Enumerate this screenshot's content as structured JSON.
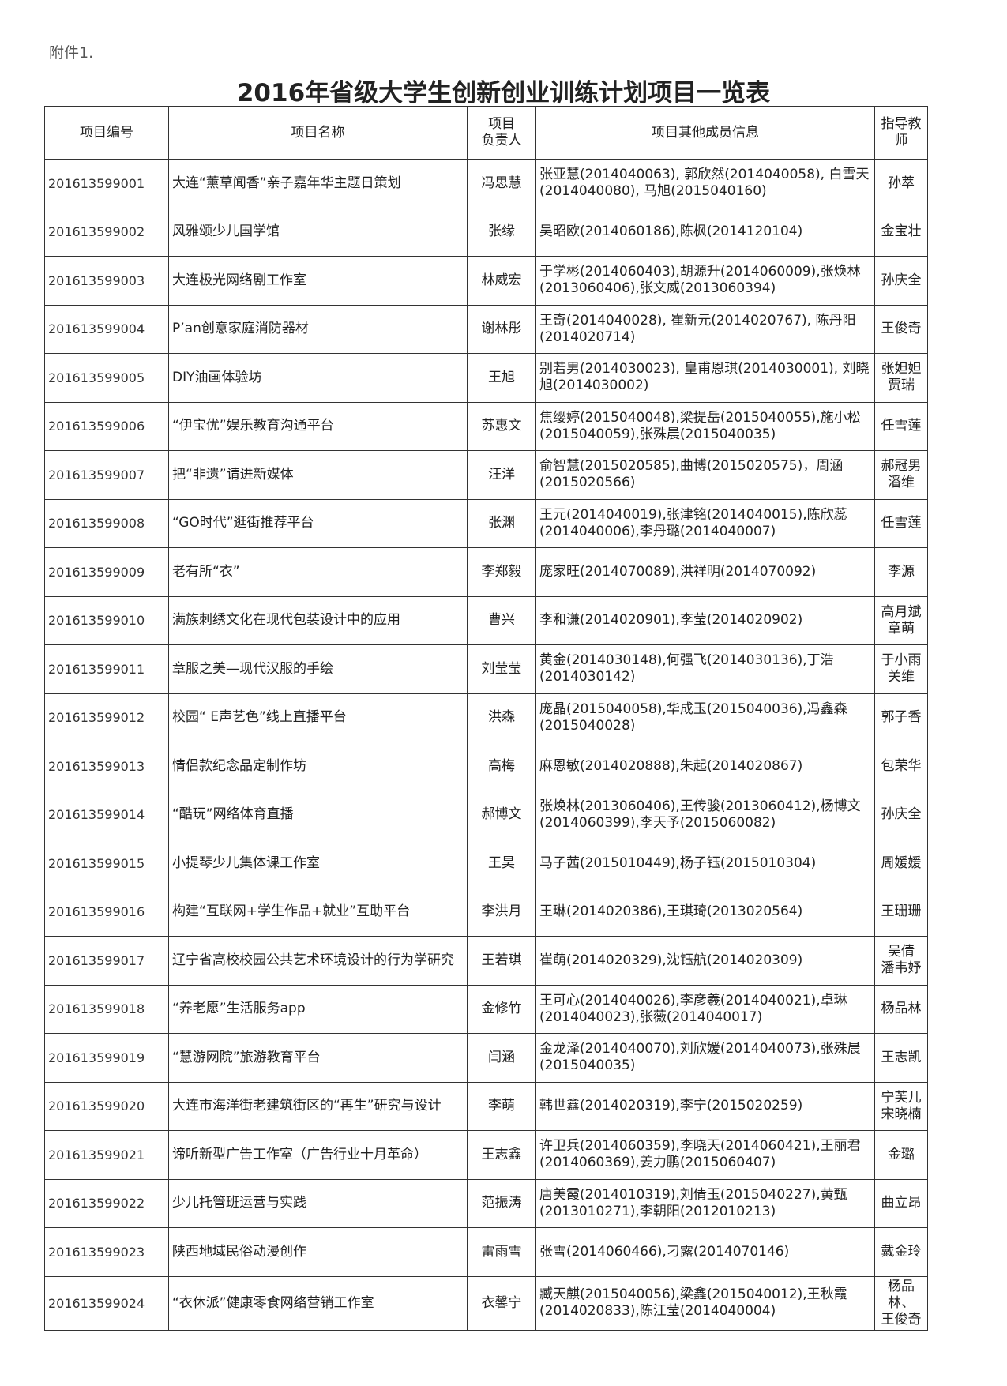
{
  "header": {
    "attachment": "附件1.",
    "title": "2016年省级大学生创新创业训练计划项目一览表"
  },
  "table": {
    "columns": [
      "项目编号",
      "项目名称",
      "项目\n负责人",
      "项目其他成员信息",
      "指导教师"
    ],
    "rows": [
      [
        "201613599001",
        "大连“薰草闻香”亲子嘉年华主题日策划",
        "冯思慧",
        "张亚慧(2014040063), 郭欣然(2014040058), 白雪天(2014040080), 马旭(2015040160)",
        "孙萃"
      ],
      [
        "201613599002",
        "风雅颂少儿国学馆",
        "张缘",
        "吴昭欧(2014060186),陈枫(2014120104)",
        "金宝壮"
      ],
      [
        "201613599003",
        "大连极光网络剧工作室",
        "林威宏",
        "于学彬(2014060403),胡源升(2014060009),张焕林(2013060406),张文威(2013060394)",
        "孙庆全"
      ],
      [
        "201613599004",
        "P’an创意家庭消防器材",
        "谢林彤",
        "王奇(2014040028), 崔新元(2014020767), 陈丹阳(2014020714)",
        "王俊奇"
      ],
      [
        "201613599005",
        "DIY油画体验坊",
        "王旭",
        "别若男(2014030023), 皇甫恩琪(2014030001), 刘晓旭(2014030002)",
        "张妲妲\n贾瑞"
      ],
      [
        "201613599006",
        "“伊宝优”娱乐教育沟通平台",
        "苏惠文",
        "焦缨婷(2015040048),梁提岳(2015040055),施小松(2015040059),张殊晨(2015040035)",
        "任雪莲"
      ],
      [
        "201613599007",
        "把“非遗”请进新媒体",
        "汪洋",
        "俞智慧(2015020585),曲博(2015020575)，周涵(2015020566)",
        "郝冠男\n潘维"
      ],
      [
        "201613599008",
        "“GO时代”逛街推荐平台",
        "张渊",
        "王元(2014040019),张津铭(2014040015),陈欣蕊(2014040006),李丹璐(2014040007)",
        "任雪莲"
      ],
      [
        "201613599009",
        "老有所“衣”",
        "李郑毅",
        "庞家旺(2014070089),洪祥明(2014070092)",
        "李源"
      ],
      [
        "201613599010",
        "满族刺绣文化在现代包装设计中的应用",
        "曹兴",
        "李和谦(2014020901),李莹(2014020902)",
        "高月斌\n章萌"
      ],
      [
        "201613599011",
        "章服之美—现代汉服的手绘",
        "刘莹莹",
        "黄金(2014030148),何强飞(2014030136),丁浩(2014030142)",
        "于小雨\n关维"
      ],
      [
        "201613599012",
        "校园“ E声艺色”线上直播平台",
        "洪森",
        "庞晶(2015040058),华成玉(2015040036),冯鑫森(2015040028)",
        "郭子香"
      ],
      [
        "201613599013",
        "情侣款纪念品定制作坊",
        "高梅",
        "麻恩敏(2014020888),朱起(2014020867)",
        "包荣华"
      ],
      [
        "201613599014",
        "“酷玩”网络体育直播",
        "郝博文",
        "张焕林(2013060406),王传骏(2013060412),杨博文(2014060399),李天予(2015060082)",
        "孙庆全"
      ],
      [
        "201613599015",
        "小提琴少儿集体课工作室",
        "王昊",
        "马子茜(2015010449),杨子钰(2015010304)",
        "周媛媛"
      ],
      [
        "201613599016",
        "构建“互联网+学生作品+就业”互助平台",
        "李洪月",
        "王琳(2014020386),王琪琦(2013020564)",
        "王珊珊"
      ],
      [
        "201613599017",
        "辽宁省高校校园公共艺术环境设计的行为学研究",
        "王若琪",
        "崔萌(2014020329),沈钰航(2014020309)",
        "吴倩\n潘韦妤"
      ],
      [
        "201613599018",
        "“养老愿”生活服务app",
        "金修竹",
        "王可心(2014040026),李彦羲(2014040021),卓琳(2014040023),张薇(2014040017)",
        "杨品林"
      ],
      [
        "201613599019",
        "“慧游网院”旅游教育平台",
        "闫涵",
        "金龙泽(2014040070),刘欣媛(2014040073),张殊晨(2015040035)",
        "王志凯"
      ],
      [
        "201613599020",
        "大连市海洋街老建筑街区的“再生”研究与设计",
        "李萌",
        "韩世鑫(2014020319),李宁(2015020259)",
        "宁芙儿\n宋晓楠"
      ],
      [
        "201613599021",
        "谛听新型广告工作室（广告行业十月革命）",
        "王志鑫",
        "许卫兵(2014060359),李晓天(2014060421),王丽君(2014060369),姜力鹏(2015060407)",
        "金璐"
      ],
      [
        "201613599022",
        "少儿托管班运营与实践",
        "范振涛",
        "唐美霞(2014010319),刘倩玉(2015040227),黄甄(2013010271),李朝阳(2012010213)",
        "曲立昂"
      ],
      [
        "201613599023",
        "陕西地域民俗动漫创作",
        "雷雨雪",
        "张雪(2014060466),刁露(2014070146)",
        "戴金玲"
      ],
      [
        "201613599024",
        "“衣休派”健康零食网络营销工作室",
        "衣馨宁",
        "臧天麒(2015040056),梁鑫(2015040012),王秋霞(2014020833),陈江莹(2014040004)",
        "杨品林、\n王俊奇"
      ]
    ]
  }
}
